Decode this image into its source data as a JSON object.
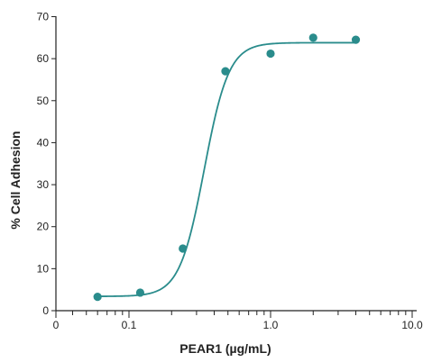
{
  "chart_data": {
    "type": "scatter",
    "title": "",
    "xlabel": "PEAR1 (µg/mL)",
    "ylabel": "% Cell Adhesion",
    "x_scale": "log",
    "xlim": [
      0.02,
      11
    ],
    "ylim": [
      0,
      70
    ],
    "grid": false,
    "legend": "none",
    "x_ticks": [
      {
        "value": 0.02,
        "label": "0"
      },
      {
        "value": 0.1,
        "label": "0.1"
      },
      {
        "value": 1,
        "label": "1.0"
      },
      {
        "value": 10,
        "label": "10.0"
      }
    ],
    "y_ticks": [
      {
        "value": 0,
        "label": "0"
      },
      {
        "value": 10,
        "label": "10"
      },
      {
        "value": 20,
        "label": "20"
      },
      {
        "value": 30,
        "label": "30"
      },
      {
        "value": 40,
        "label": "40"
      },
      {
        "value": 50,
        "label": "50"
      },
      {
        "value": 60,
        "label": "60"
      },
      {
        "value": 70,
        "label": "70"
      }
    ],
    "series": [
      {
        "points": [
          {
            "x": 0.06,
            "y": 3.3
          },
          {
            "x": 0.12,
            "y": 4.3
          },
          {
            "x": 0.24,
            "y": 14.8
          },
          {
            "x": 0.48,
            "y": 57.0
          },
          {
            "x": 1.0,
            "y": 61.2
          },
          {
            "x": 2.0,
            "y": 65.0
          },
          {
            "x": 4.0,
            "y": 64.5
          }
        ],
        "fit_curve": {
          "bottom": 3.4,
          "top": 63.8,
          "ec50": 0.34,
          "hill": 5.0
        }
      }
    ],
    "colors": {
      "marker": "#2a8c8c",
      "curve": "#2a8c8c",
      "axis": "#222222"
    }
  }
}
